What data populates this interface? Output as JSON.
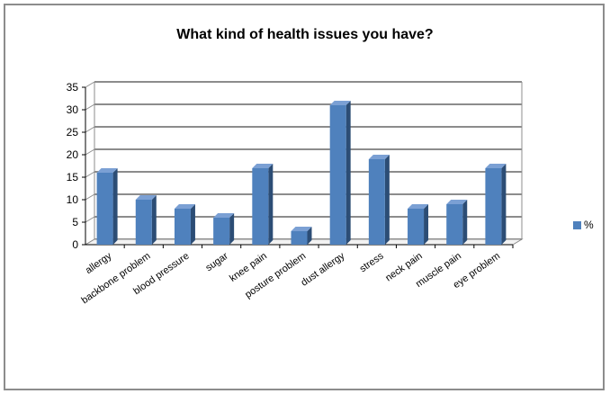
{
  "chart_data": {
    "type": "bar",
    "title": "What kind of health issues you have?",
    "categories": [
      "allergy",
      "backbone problem",
      "blood pressure",
      "sugar",
      "knee pain",
      "posture problem",
      "dust allergy",
      "stress",
      "neck pain",
      "muscle pain",
      "eye problem"
    ],
    "series": [
      {
        "name": "%",
        "values": [
          16,
          10,
          8,
          6,
          17,
          3,
          31,
          19,
          8,
          9,
          17
        ]
      }
    ],
    "ylim": [
      0,
      35
    ],
    "yticks": [
      0,
      5,
      10,
      15,
      20,
      25,
      30,
      35
    ],
    "grid": true,
    "legend": "right",
    "colors": {
      "bar_front": "#4f81bd",
      "bar_side": "#2c4d75",
      "bar_top": "#7ba0d4",
      "grid": "#8c8c8c"
    }
  }
}
